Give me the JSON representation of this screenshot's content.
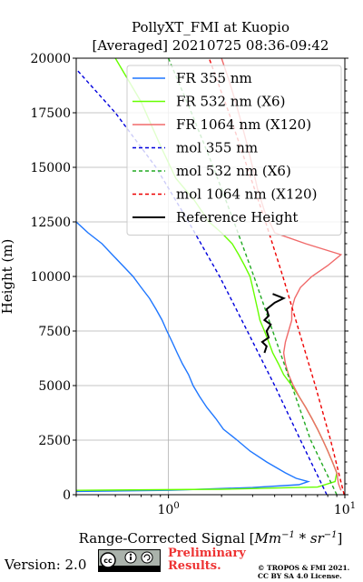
{
  "title": {
    "line1": "PollyXT_FMI at Kuopio",
    "line2": "[Averaged] 20210725 08:36-09:42"
  },
  "footer": {
    "version": "Version: 2.0",
    "preliminary_line1": "Preliminary",
    "preliminary_line2": "Results.",
    "copyright_line1": "© TROPOS & FMI 2021.",
    "copyright_line2": "CC BY SA 4.0 License.",
    "badge_icon": "cc-by-sa-icon"
  },
  "chart_data": {
    "type": "line",
    "title": "PollyXT_FMI at Kuopio [Averaged] 20210725 08:36-09:42",
    "xlabel": "Range-Corrected Signal [Mm^-1 * sr^-1]",
    "ylabel": "Height (m)",
    "xscale": "log",
    "xlim": [
      0.3,
      10
    ],
    "ylim": [
      0,
      20000
    ],
    "xticks": [
      {
        "value": 1,
        "label": "10^0"
      },
      {
        "value": 10,
        "label": "10^1"
      }
    ],
    "yticks": [
      0,
      2500,
      5000,
      7500,
      10000,
      12500,
      15000,
      17500,
      20000
    ],
    "grid": true,
    "legend_position": "top-right",
    "series": [
      {
        "name": "FR 355 nm",
        "style": "solid",
        "color": "#1f77ff",
        "points": [
          [
            0.3,
            150
          ],
          [
            1.0,
            200
          ],
          [
            3.0,
            330
          ],
          [
            5.5,
            460
          ],
          [
            6.2,
            600
          ],
          [
            5.3,
            750
          ],
          [
            4.6,
            1000
          ],
          [
            3.6,
            1500
          ],
          [
            2.9,
            2000
          ],
          [
            2.45,
            2500
          ],
          [
            2.05,
            3000
          ],
          [
            1.85,
            3500
          ],
          [
            1.65,
            4000
          ],
          [
            1.5,
            4500
          ],
          [
            1.38,
            5000
          ],
          [
            1.3,
            5500
          ],
          [
            1.2,
            6000
          ],
          [
            1.12,
            6500
          ],
          [
            1.05,
            7000
          ],
          [
            0.98,
            7500
          ],
          [
            0.92,
            8000
          ],
          [
            0.85,
            8500
          ],
          [
            0.78,
            9000
          ],
          [
            0.7,
            9500
          ],
          [
            0.63,
            10000
          ],
          [
            0.55,
            10500
          ],
          [
            0.48,
            11000
          ],
          [
            0.42,
            11500
          ],
          [
            0.35,
            12000
          ],
          [
            0.3,
            12500
          ]
        ]
      },
      {
        "name": "FR 532 nm (X6)",
        "style": "solid",
        "color": "#66ff00",
        "points": [
          [
            0.3,
            200
          ],
          [
            2.0,
            250
          ],
          [
            7.0,
            350
          ],
          [
            8.8,
            600
          ],
          [
            9.0,
            1000
          ],
          [
            8.5,
            1500
          ],
          [
            8.0,
            2000
          ],
          [
            7.5,
            2500
          ],
          [
            7.0,
            3000
          ],
          [
            6.5,
            3500
          ],
          [
            6.0,
            4000
          ],
          [
            5.5,
            4500
          ],
          [
            5.0,
            5000
          ],
          [
            4.5,
            5500
          ],
          [
            4.2,
            6000
          ],
          [
            3.9,
            6500
          ],
          [
            3.7,
            7000
          ],
          [
            3.5,
            7500
          ],
          [
            3.3,
            8000
          ],
          [
            3.2,
            8500
          ],
          [
            3.1,
            9000
          ],
          [
            3.0,
            9500
          ],
          [
            2.9,
            10000
          ],
          [
            2.7,
            10500
          ],
          [
            2.5,
            11000
          ],
          [
            2.3,
            11500
          ],
          [
            2.0,
            12000
          ],
          [
            1.7,
            12500
          ],
          [
            1.4,
            13500
          ],
          [
            1.1,
            14500
          ],
          [
            0.9,
            16000
          ],
          [
            0.7,
            18000
          ],
          [
            0.5,
            20000
          ]
        ]
      },
      {
        "name": "FR 1064 nm (X120)",
        "style": "solid",
        "color": "#f06a6a",
        "points": [
          [
            9.5,
            200
          ],
          [
            9.2,
            500
          ],
          [
            9.0,
            1000
          ],
          [
            8.5,
            1500
          ],
          [
            8.0,
            2000
          ],
          [
            7.5,
            2500
          ],
          [
            7.0,
            3000
          ],
          [
            6.5,
            3500
          ],
          [
            6.0,
            4000
          ],
          [
            5.5,
            4500
          ],
          [
            5.1,
            5000
          ],
          [
            4.8,
            5500
          ],
          [
            4.6,
            6000
          ],
          [
            4.5,
            6500
          ],
          [
            4.6,
            7000
          ],
          [
            4.8,
            7500
          ],
          [
            5.0,
            8000
          ],
          [
            5.0,
            8500
          ],
          [
            5.2,
            9000
          ],
          [
            5.6,
            9500
          ],
          [
            6.5,
            10000
          ],
          [
            8.0,
            10500
          ],
          [
            9.5,
            11000
          ],
          [
            6.0,
            11500
          ],
          [
            4.0,
            12000
          ],
          [
            3.5,
            13000
          ],
          [
            3.2,
            14000
          ],
          [
            3.0,
            15000
          ],
          [
            2.8,
            16000
          ],
          [
            2.6,
            17000
          ],
          [
            2.4,
            18000
          ],
          [
            2.2,
            19000
          ],
          [
            2.0,
            20000
          ]
        ]
      },
      {
        "name": "mol 355 nm",
        "style": "dashed",
        "color": "#0000dd",
        "points": [
          [
            7.9,
            0
          ],
          [
            5.6,
            2500
          ],
          [
            4.0,
            5000
          ],
          [
            2.8,
            7500
          ],
          [
            1.95,
            10000
          ],
          [
            1.3,
            12500
          ],
          [
            0.85,
            15000
          ],
          [
            0.5,
            17500
          ],
          [
            0.3,
            19500
          ]
        ]
      },
      {
        "name": "mol 532 nm (X6)",
        "style": "dashed",
        "color": "#22aa22",
        "points": [
          [
            9.0,
            0
          ],
          [
            6.4,
            2500
          ],
          [
            5.0,
            5000
          ],
          [
            3.9,
            7500
          ],
          [
            3.05,
            10000
          ],
          [
            2.35,
            12500
          ],
          [
            1.8,
            15000
          ],
          [
            1.35,
            17500
          ],
          [
            1.0,
            20000
          ]
        ]
      },
      {
        "name": "mol 1064 nm (X120)",
        "style": "dashed",
        "color": "#ee0000",
        "points": [
          [
            9.9,
            0
          ],
          [
            8.3,
            2500
          ],
          [
            6.8,
            5000
          ],
          [
            5.5,
            7500
          ],
          [
            4.45,
            10000
          ],
          [
            3.55,
            12500
          ],
          [
            2.8,
            15000
          ],
          [
            2.2,
            17500
          ],
          [
            1.7,
            20000
          ]
        ]
      },
      {
        "name": "Reference Height",
        "style": "solid",
        "color": "#000000",
        "points": [
          [
            3.5,
            6500
          ],
          [
            3.6,
            6800
          ],
          [
            3.4,
            7000
          ],
          [
            3.7,
            7200
          ],
          [
            3.6,
            7500
          ],
          [
            3.8,
            7800
          ],
          [
            3.5,
            8000
          ],
          [
            3.7,
            8200
          ],
          [
            3.6,
            8500
          ],
          [
            4.0,
            8800
          ],
          [
            4.5,
            9000
          ],
          [
            3.9,
            9200
          ]
        ]
      }
    ]
  }
}
